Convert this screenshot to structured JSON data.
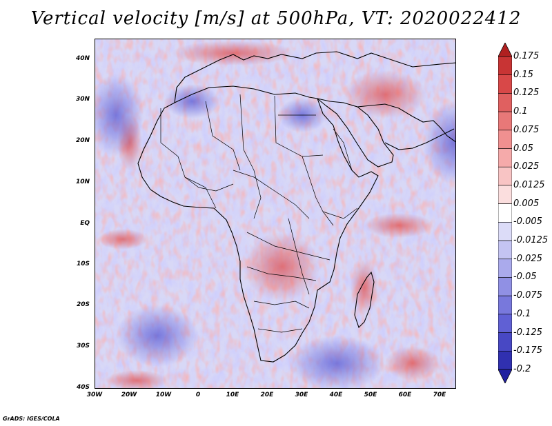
{
  "title": "Vertical velocity [m/s] at 500hPa, VT: 2020022412",
  "credit": "GrADS: IGES/COLA",
  "map": {
    "variable": "Vertical velocity",
    "units": "m/s",
    "level": "500hPa",
    "valid_time": "2020022412",
    "lat_labels": [
      "40N",
      "30N",
      "20N",
      "10N",
      "EQ",
      "10S",
      "20S",
      "30S",
      "40S"
    ],
    "lon_labels": [
      "30W",
      "20W",
      "10W",
      "0",
      "10E",
      "20E",
      "30E",
      "40E",
      "50E",
      "60E",
      "70E"
    ]
  },
  "colorbar": {
    "labels": [
      "0.175",
      "0.15",
      "0.125",
      "0.1",
      "0.075",
      "0.05",
      "0.025",
      "0.0125",
      "0.005",
      "-0.005",
      "-0.0125",
      "-0.025",
      "-0.05",
      "-0.075",
      "-0.1",
      "-0.125",
      "-0.175",
      "-0.2"
    ],
    "colors": [
      "#b02020",
      "#c83434",
      "#d84848",
      "#e06060",
      "#e87878",
      "#f09090",
      "#f5aaaa",
      "#f8c4c4",
      "#fbdede",
      "#ffffff",
      "#dcdcf8",
      "#c4c4f2",
      "#aaaaec",
      "#9090e4",
      "#7878dc",
      "#6060d4",
      "#4848c4",
      "#3030b0",
      "#2020a0"
    ]
  }
}
